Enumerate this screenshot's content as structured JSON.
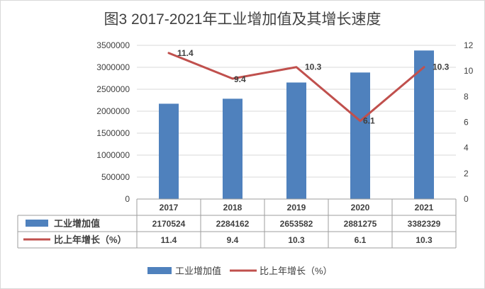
{
  "chart_data": {
    "type": "bar",
    "title": "图3  2017-2021年工业增加值及其增长速度",
    "categories": [
      "2017",
      "2018",
      "2019",
      "2020",
      "2021"
    ],
    "series": [
      {
        "name": "工业增加值",
        "type": "bar",
        "axis": "left",
        "color": "#4F81BD",
        "values": [
          2170524,
          2284162,
          2653582,
          2881275,
          3382329
        ]
      },
      {
        "name": "比上年增长（%）",
        "type": "line",
        "axis": "right",
        "color": "#C0504D",
        "values": [
          11.4,
          9.4,
          10.3,
          6.1,
          10.3
        ]
      }
    ],
    "y_left": {
      "min": 0,
      "max": 3500000,
      "ticks": [
        "0",
        "500000",
        "1000000",
        "1500000",
        "2000000",
        "2500000",
        "3000000",
        "3500000"
      ]
    },
    "y_right": {
      "min": 0,
      "max": 12,
      "ticks": [
        "0",
        "2",
        "4",
        "6",
        "8",
        "10",
        "12"
      ]
    },
    "data_labels": [
      "11.4",
      "9.4",
      "10.3",
      "6.1",
      "10.3"
    ],
    "table": {
      "rows": [
        {
          "label": "工业增加值",
          "values": [
            "2170524",
            "2284162",
            "2653582",
            "2881275",
            "3382329"
          ]
        },
        {
          "label": "比上年增长（%）",
          "values": [
            "11.4",
            "9.4",
            "10.3",
            "6.1",
            "10.3"
          ]
        }
      ]
    },
    "legend": {
      "position": "bottom",
      "items": [
        "工业增加值",
        "比上年增长（%）"
      ]
    },
    "grid": true
  }
}
